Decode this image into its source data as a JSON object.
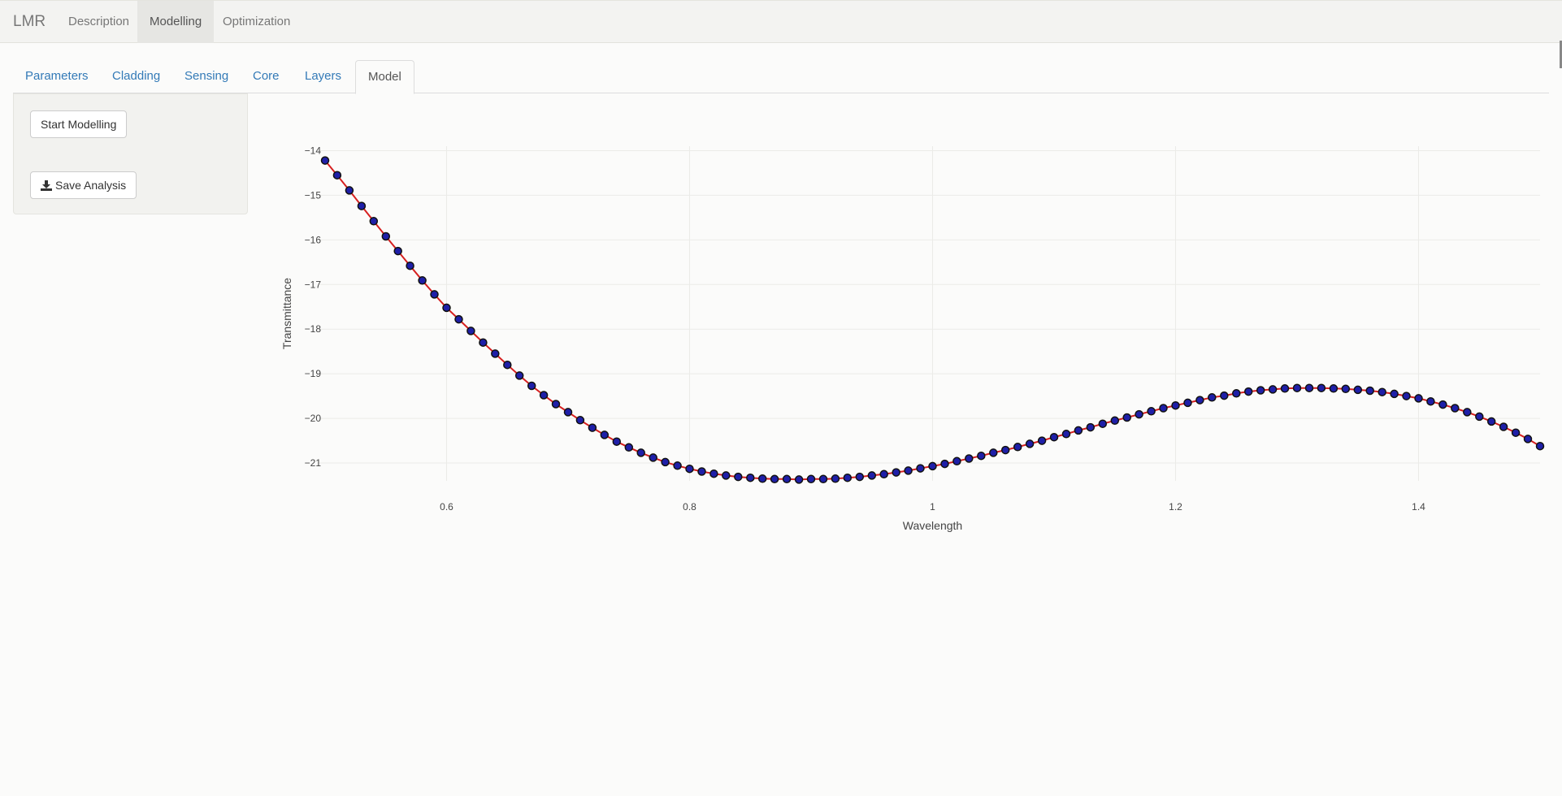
{
  "navbar": {
    "brand": "LMR",
    "items": [
      {
        "label": "Description",
        "active": false
      },
      {
        "label": "Modelling",
        "active": true
      },
      {
        "label": "Optimization",
        "active": false
      }
    ]
  },
  "tabs": [
    {
      "label": "Parameters",
      "active": false
    },
    {
      "label": "Cladding",
      "active": false
    },
    {
      "label": "Sensing",
      "active": false
    },
    {
      "label": "Core",
      "active": false
    },
    {
      "label": "Layers",
      "active": false
    },
    {
      "label": "Model",
      "active": true
    }
  ],
  "sidebar": {
    "start_button": "Start Modelling",
    "save_button": "Save Analysis",
    "save_icon": "download-icon"
  },
  "colors": {
    "line": "#d62020",
    "marker_fill": "#1f1fa8",
    "marker_edge": "#111111",
    "link": "#337ab7"
  },
  "chart_data": {
    "type": "line",
    "xlabel": "Wavelength",
    "ylabel": "Transmittance",
    "xlim": [
      0.5,
      1.5
    ],
    "ylim": [
      -21.4,
      -13.9
    ],
    "xticks": [
      0.6,
      0.8,
      1,
      1.2,
      1.4
    ],
    "xtick_labels": [
      "0.6",
      "0.8",
      "1",
      "1.2",
      "1.4"
    ],
    "yticks": [
      -14,
      -15,
      -16,
      -17,
      -18,
      -19,
      -20,
      -21
    ],
    "ytick_labels": [
      "−14",
      "−15",
      "−16",
      "−17",
      "−18",
      "−19",
      "−20",
      "−21"
    ],
    "grid": true,
    "markers": true,
    "x": [
      0.5,
      0.51,
      0.52,
      0.53,
      0.54,
      0.55,
      0.56,
      0.57,
      0.58,
      0.59,
      0.6,
      0.61,
      0.62,
      0.63,
      0.64,
      0.65,
      0.66,
      0.67,
      0.68,
      0.69,
      0.7,
      0.71,
      0.72,
      0.73,
      0.74,
      0.75,
      0.76,
      0.77,
      0.78,
      0.79,
      0.8,
      0.81,
      0.82,
      0.83,
      0.84,
      0.85,
      0.86,
      0.87,
      0.88,
      0.89,
      0.9,
      0.91,
      0.92,
      0.93,
      0.94,
      0.95,
      0.96,
      0.97,
      0.98,
      0.99,
      1.0,
      1.01,
      1.02,
      1.03,
      1.04,
      1.05,
      1.06,
      1.07,
      1.08,
      1.09,
      1.1,
      1.11,
      1.12,
      1.13,
      1.14,
      1.15,
      1.16,
      1.17,
      1.18,
      1.19,
      1.2,
      1.21,
      1.22,
      1.23,
      1.24,
      1.25,
      1.26,
      1.27,
      1.28,
      1.29,
      1.3,
      1.31,
      1.32,
      1.33,
      1.34,
      1.35,
      1.36,
      1.37,
      1.38,
      1.39,
      1.4,
      1.41,
      1.42,
      1.43,
      1.44,
      1.45,
      1.46,
      1.47,
      1.48,
      1.49,
      1.5
    ],
    "y": [
      -14.22,
      -14.55,
      -14.89,
      -15.24,
      -15.58,
      -15.92,
      -16.25,
      -16.58,
      -16.91,
      -17.22,
      -17.52,
      -17.78,
      -18.04,
      -18.3,
      -18.55,
      -18.8,
      -19.04,
      -19.27,
      -19.48,
      -19.68,
      -19.86,
      -20.04,
      -20.21,
      -20.37,
      -20.52,
      -20.65,
      -20.77,
      -20.88,
      -20.98,
      -21.06,
      -21.13,
      -21.19,
      -21.24,
      -21.28,
      -21.31,
      -21.33,
      -21.35,
      -21.36,
      -21.36,
      -21.37,
      -21.36,
      -21.36,
      -21.35,
      -21.33,
      -21.31,
      -21.28,
      -21.25,
      -21.21,
      -21.17,
      -21.12,
      -21.07,
      -21.02,
      -20.96,
      -20.9,
      -20.84,
      -20.77,
      -20.71,
      -20.64,
      -20.57,
      -20.5,
      -20.42,
      -20.35,
      -20.27,
      -20.2,
      -20.12,
      -20.05,
      -19.98,
      -19.91,
      -19.84,
      -19.77,
      -19.71,
      -19.65,
      -19.59,
      -19.53,
      -19.49,
      -19.44,
      -19.4,
      -19.37,
      -19.35,
      -19.33,
      -19.32,
      -19.32,
      -19.32,
      -19.33,
      -19.34,
      -19.36,
      -19.38,
      -19.41,
      -19.45,
      -19.5,
      -19.55,
      -19.62,
      -19.69,
      -19.77,
      -19.86,
      -19.96,
      -20.07,
      -20.19,
      -20.32,
      -20.46,
      -20.62
    ]
  }
}
